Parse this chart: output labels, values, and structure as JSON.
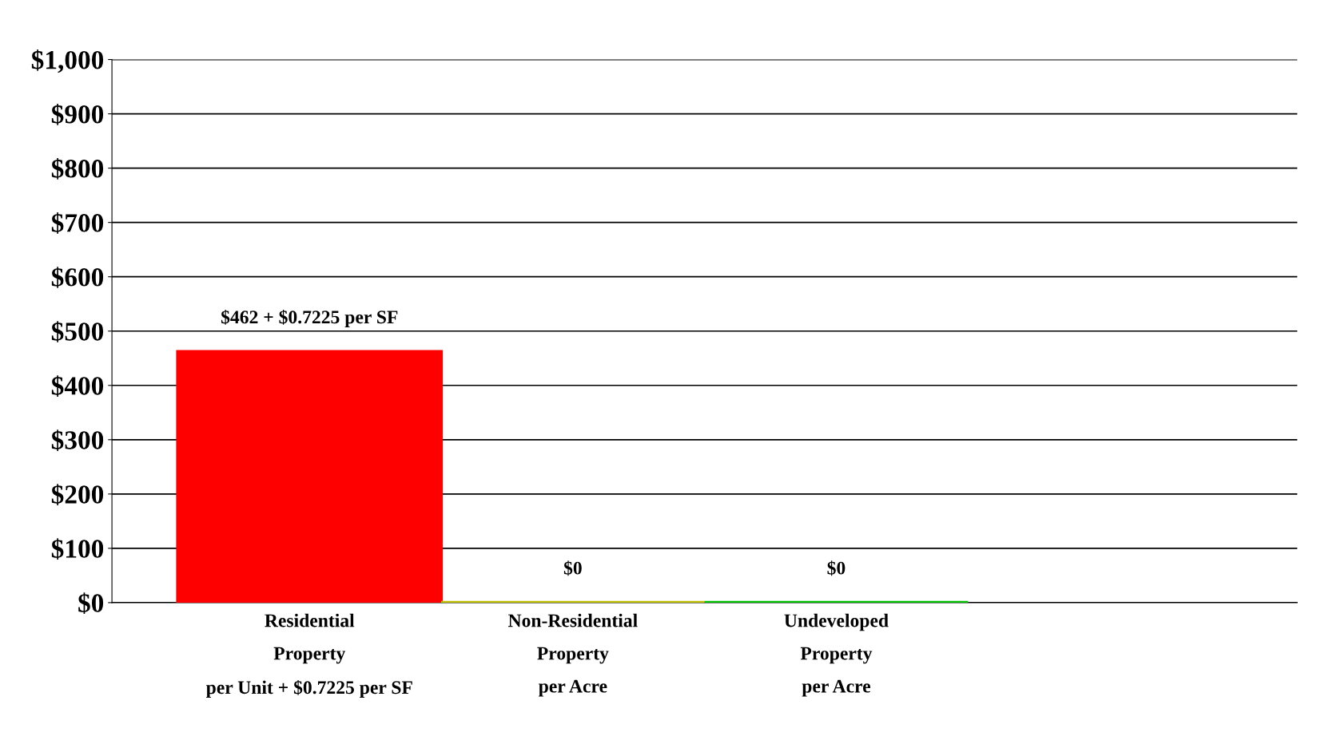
{
  "chart_data": {
    "type": "bar",
    "categories": [
      "Residential\nProperty\nper Unit + $0.7225 per SF",
      "Non-Residential\nProperty\nper Acre",
      "Undeveloped\nProperty\nper Acre"
    ],
    "values": [
      462,
      0,
      0
    ],
    "colors": [
      "#ff0000",
      "#c0c000",
      "#00c000"
    ],
    "value_labels": [
      "$462 + $0.7225 per SF",
      "$0",
      "$0"
    ],
    "ylim": [
      0,
      1000
    ],
    "yticks": [
      {
        "value": 0,
        "label": "$0"
      },
      {
        "value": 100,
        "label": "$100"
      },
      {
        "value": 200,
        "label": "$200"
      },
      {
        "value": 300,
        "label": "$300"
      },
      {
        "value": 400,
        "label": "$400"
      },
      {
        "value": 500,
        "label": "$500"
      },
      {
        "value": 600,
        "label": "$600"
      },
      {
        "value": 700,
        "label": "$700"
      },
      {
        "value": 800,
        "label": "$800"
      },
      {
        "value": 900,
        "label": "$900"
      },
      {
        "value": 1000,
        "label": "$1,000"
      }
    ],
    "grid": "y"
  }
}
